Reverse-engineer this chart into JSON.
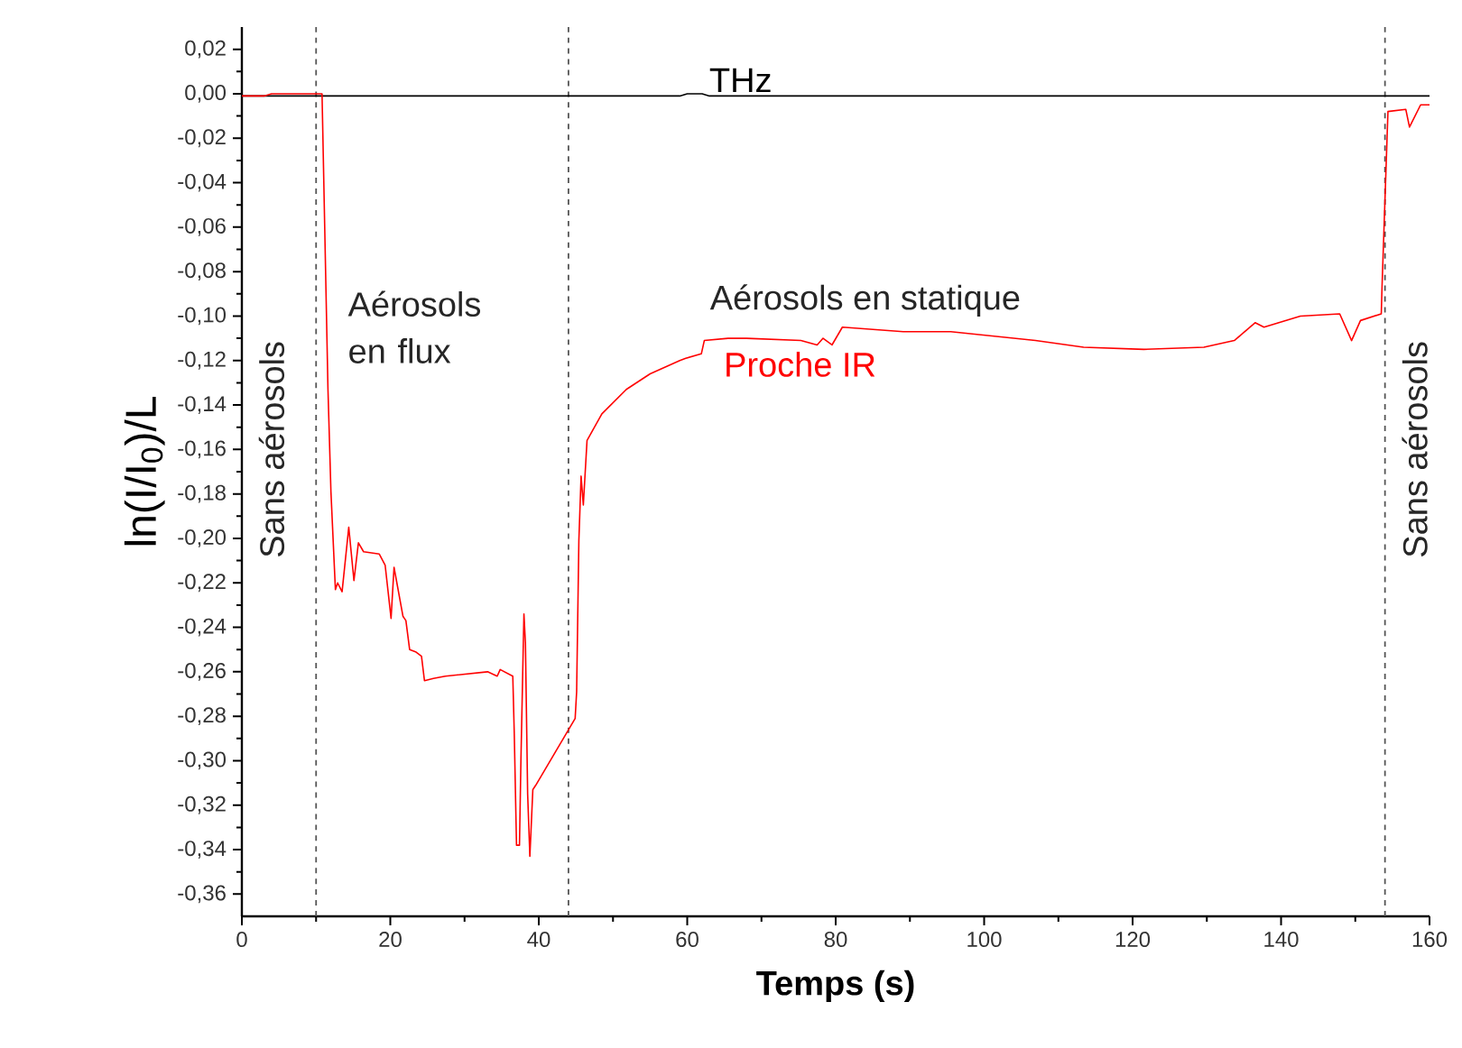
{
  "chart_data": {
    "type": "line",
    "xlabel": "Temps (s)",
    "ylabel": "ln(I/I$_{0}$)/L",
    "xlim": [
      0,
      160
    ],
    "xticks": [
      0,
      20,
      40,
      60,
      80,
      100,
      120,
      140,
      160
    ],
    "ylim": [
      -0.37,
      0.03
    ],
    "yticks": [
      {
        "value": 0.02,
        "label": "0,02"
      },
      {
        "value": 0,
        "label": "0,00"
      },
      {
        "value": -0.02,
        "label": "-0,02"
      },
      {
        "value": -0.04,
        "label": "-0,04"
      },
      {
        "value": -0.06,
        "label": "-0,06"
      },
      {
        "value": -0.08,
        "label": "-0,08"
      },
      {
        "value": -0.1,
        "label": "-0,10"
      },
      {
        "value": -0.12,
        "label": "-0,12"
      },
      {
        "value": -0.14,
        "label": "-0,14"
      },
      {
        "value": -0.16,
        "label": "-0,16"
      },
      {
        "value": -0.18,
        "label": "-0,18"
      },
      {
        "value": -0.2,
        "label": "-0,20"
      },
      {
        "value": -0.22,
        "label": "-0,22"
      },
      {
        "value": -0.24,
        "label": "-0,24"
      },
      {
        "value": -0.26,
        "label": "-0,26"
      },
      {
        "value": -0.28,
        "label": "-0,28"
      },
      {
        "value": -0.3,
        "label": "-0,30"
      },
      {
        "value": -0.32,
        "label": "-0,32"
      },
      {
        "value": -0.34,
        "label": "-0,34"
      },
      {
        "value": -0.36,
        "label": "-0,36"
      }
    ],
    "marker": "none",
    "line_style": "solid",
    "grid": false,
    "series": [
      {
        "name": "THz",
        "color": "#000000",
        "x": [
          0,
          59,
          60,
          62,
          63,
          160
        ],
        "values": [
          -0.001,
          -0.001,
          0,
          0,
          -0.001,
          -0.001
        ]
      },
      {
        "name": "Proche IR",
        "color": "#ff0000",
        "x": [
          0,
          3,
          4,
          10,
          10.8,
          11.6,
          12.0,
          12.6,
          12.9,
          13.5,
          14.4,
          15.1,
          15.7,
          16.4,
          18.5,
          19.3,
          20.1,
          20.5,
          21.7,
          22.1,
          22.6,
          23.4,
          24.2,
          24.6,
          25.8,
          27.4,
          33.1,
          34.4,
          34.8,
          36.5,
          36.7,
          37.0,
          37.4,
          37.6,
          38.0,
          38.2,
          38.5,
          38.8,
          39.2,
          39.6,
          44.9,
          45.1,
          45.4,
          45.7,
          46.0,
          46.5,
          48.5,
          51.8,
          55.0,
          59.0,
          59.8,
          61.9,
          62.3,
          65.5,
          68.0,
          75.3,
          77.5,
          78.3,
          79.5,
          80.9,
          89.1,
          95.5,
          106.9,
          113.4,
          121.5,
          129.6,
          133.7,
          136.5,
          137.7,
          142.6,
          147.9,
          149.5,
          150.7,
          153.5,
          153.6,
          154.4,
          156.8,
          157.3,
          158.8,
          160
        ],
        "values": [
          -0.001,
          -0.001,
          0,
          0,
          0,
          -0.133,
          -0.179,
          -0.223,
          -0.22,
          -0.224,
          -0.195,
          -0.219,
          -0.202,
          -0.206,
          -0.207,
          -0.212,
          -0.236,
          -0.213,
          -0.235,
          -0.237,
          -0.25,
          -0.251,
          -0.253,
          -0.264,
          -0.263,
          -0.262,
          -0.26,
          -0.262,
          -0.259,
          -0.262,
          -0.288,
          -0.338,
          -0.338,
          -0.299,
          -0.234,
          -0.247,
          -0.315,
          -0.343,
          -0.313,
          -0.311,
          -0.281,
          -0.269,
          -0.201,
          -0.172,
          -0.185,
          -0.156,
          -0.144,
          -0.133,
          -0.126,
          -0.12,
          -0.119,
          -0.117,
          -0.111,
          -0.11,
          -0.11,
          -0.111,
          -0.113,
          -0.11,
          -0.113,
          -0.105,
          -0.107,
          -0.107,
          -0.111,
          -0.114,
          -0.115,
          -0.114,
          -0.111,
          -0.103,
          -0.105,
          -0.1,
          -0.099,
          -0.111,
          -0.102,
          -0.099,
          -0.087,
          -0.008,
          -0.007,
          -0.015,
          -0.005,
          -0.005
        ]
      }
    ],
    "ref_lines": [
      {
        "axis": "x",
        "value": 10,
        "color": "#555555",
        "line_style": "dashed"
      },
      {
        "axis": "x",
        "value": 44,
        "color": "#555555",
        "line_style": "dashed"
      },
      {
        "axis": "x",
        "value": 154,
        "color": "#555555",
        "line_style": "dashed"
      }
    ],
    "annotations": [
      "Sans aérosols",
      "Aérosols en flux",
      "Aérosols en statique",
      "Sans aérosols"
    ]
  }
}
